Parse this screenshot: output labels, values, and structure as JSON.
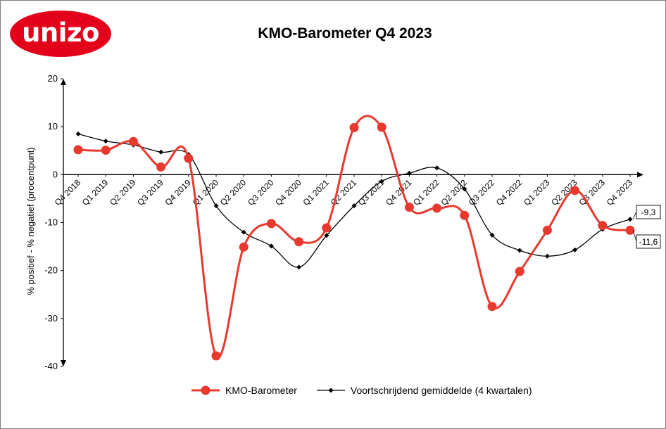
{
  "logo": {
    "text": "unizo",
    "color": "#e2001a"
  },
  "chart_data": {
    "type": "line",
    "title": "KMO-Barometer Q4 2023",
    "xlabel": "",
    "ylabel": "% positief - % negatief (procentpunt)",
    "ylim": [
      -40,
      20
    ],
    "yticks": [
      20,
      10,
      0,
      -10,
      -20,
      -30,
      -40
    ],
    "grid": false,
    "legend_position": "bottom",
    "categories": [
      "Q4 2018",
      "Q1 2019",
      "Q2 2019",
      "Q3 2019",
      "Q4 2019",
      "Q1 2020",
      "Q2 2020",
      "Q3 2020",
      "Q4 2020",
      "Q1 2021",
      "Q2 2021",
      "Q3 2021",
      "Q4 2021",
      "Q1 2022",
      "Q2 2022",
      "Q3 2022",
      "Q4 2022",
      "Q1 2023",
      "Q2 2023",
      "Q3 2023",
      "Q4 2023"
    ],
    "series": [
      {
        "name": "KMO-Barometer",
        "color": "#e8392f",
        "values": [
          5.2,
          5.1,
          6.9,
          1.6,
          3.4,
          -37.8,
          -15.1,
          -10.2,
          -14.0,
          -11.1,
          9.8,
          9.9,
          -6.8,
          -7.0,
          -8.5,
          -27.5,
          -20.2,
          -11.6,
          -3.3,
          -10.6,
          -11.6
        ]
      },
      {
        "name": "Voortschrijdend gemiddelde (4 kwartalen)",
        "color": "#000000",
        "values": [
          8.5,
          7.0,
          6.2,
          4.7,
          4.2,
          -6.5,
          -12.0,
          -14.9,
          -19.3,
          -12.7,
          -6.5,
          -1.4,
          0.3,
          1.4,
          -3.0,
          -12.6,
          -15.8,
          -17.0,
          -15.7,
          -11.4,
          -9.3
        ]
      }
    ],
    "data_labels": {
      "moving_average_last": "-9,3",
      "barometer_last": "-11,6"
    }
  }
}
